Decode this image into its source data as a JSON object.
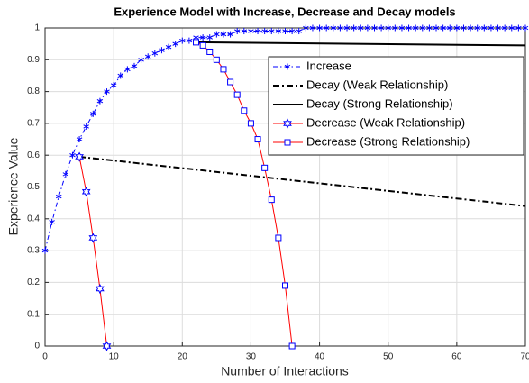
{
  "chart_data": {
    "type": "line",
    "title": "Experience Model with Increase, Decrease and Decay models",
    "xlabel": "Number of Interactions",
    "ylabel": "Experience Value",
    "xlim": [
      0,
      70
    ],
    "ylim": [
      0,
      1
    ],
    "xticks": [
      0,
      10,
      20,
      30,
      40,
      50,
      60,
      70
    ],
    "yticks": [
      0,
      0.1,
      0.2,
      0.3,
      0.4,
      0.5,
      0.6,
      0.7,
      0.8,
      0.9,
      1
    ],
    "grid": true,
    "legend": "northeast",
    "series": [
      {
        "name": "Increase",
        "color": "#0000ff",
        "style": "dashdot",
        "marker": "asterisk",
        "x": [
          0,
          1,
          2,
          3,
          4,
          5,
          6,
          7,
          8,
          9,
          10,
          11,
          12,
          13,
          14,
          15,
          16,
          17,
          18,
          19,
          20,
          21,
          22,
          23,
          24,
          25,
          26,
          27,
          28,
          29,
          30,
          31,
          32,
          33,
          34,
          35,
          36,
          37,
          38,
          39,
          40,
          41,
          42,
          43,
          44,
          45,
          46,
          47,
          48,
          49,
          50,
          51,
          52,
          53,
          54,
          55,
          56,
          57,
          58,
          59,
          60,
          61,
          62,
          63,
          64,
          65,
          66,
          67,
          68,
          69,
          70
        ],
        "values": [
          0.3,
          0.39,
          0.47,
          0.54,
          0.6,
          0.65,
          0.69,
          0.73,
          0.77,
          0.8,
          0.82,
          0.85,
          0.87,
          0.88,
          0.9,
          0.91,
          0.92,
          0.93,
          0.94,
          0.95,
          0.96,
          0.96,
          0.97,
          0.97,
          0.97,
          0.98,
          0.98,
          0.98,
          0.99,
          0.99,
          0.99,
          0.99,
          0.99,
          0.99,
          0.99,
          0.99,
          0.99,
          0.99,
          1,
          1,
          1,
          1,
          1,
          1,
          1,
          1,
          1,
          1,
          1,
          1,
          1,
          1,
          1,
          1,
          1,
          1,
          1,
          1,
          1,
          1,
          1,
          1,
          1,
          1,
          1,
          1,
          1,
          1,
          1,
          1,
          1
        ]
      },
      {
        "name": "Decay (Weak Relationship)",
        "color": "#000000",
        "style": "dashdot",
        "marker": "none",
        "x": [
          5,
          70
        ],
        "values": [
          0.595,
          0.44
        ]
      },
      {
        "name": "Decay (Strong Relationship)",
        "color": "#000000",
        "style": "solid",
        "marker": "none",
        "x": [
          22,
          70
        ],
        "values": [
          0.955,
          0.945
        ]
      },
      {
        "name": "Decrease (Weak Relationship)",
        "color": "#ff0000",
        "style": "solid",
        "marker": "hexagram",
        "marker_color": "#0000ff",
        "x": [
          5,
          6,
          7,
          8,
          9
        ],
        "values": [
          0.595,
          0.485,
          0.34,
          0.18,
          0
        ]
      },
      {
        "name": "Decrease (Strong Relationship)",
        "color": "#ff0000",
        "style": "solid",
        "marker": "square",
        "marker_color": "#0000ff",
        "x": [
          22,
          23,
          24,
          25,
          26,
          27,
          28,
          29,
          30,
          31,
          32,
          33,
          34,
          35,
          36
        ],
        "values": [
          0.955,
          0.945,
          0.925,
          0.9,
          0.87,
          0.83,
          0.79,
          0.74,
          0.7,
          0.65,
          0.56,
          0.46,
          0.34,
          0.19,
          0
        ]
      }
    ]
  }
}
